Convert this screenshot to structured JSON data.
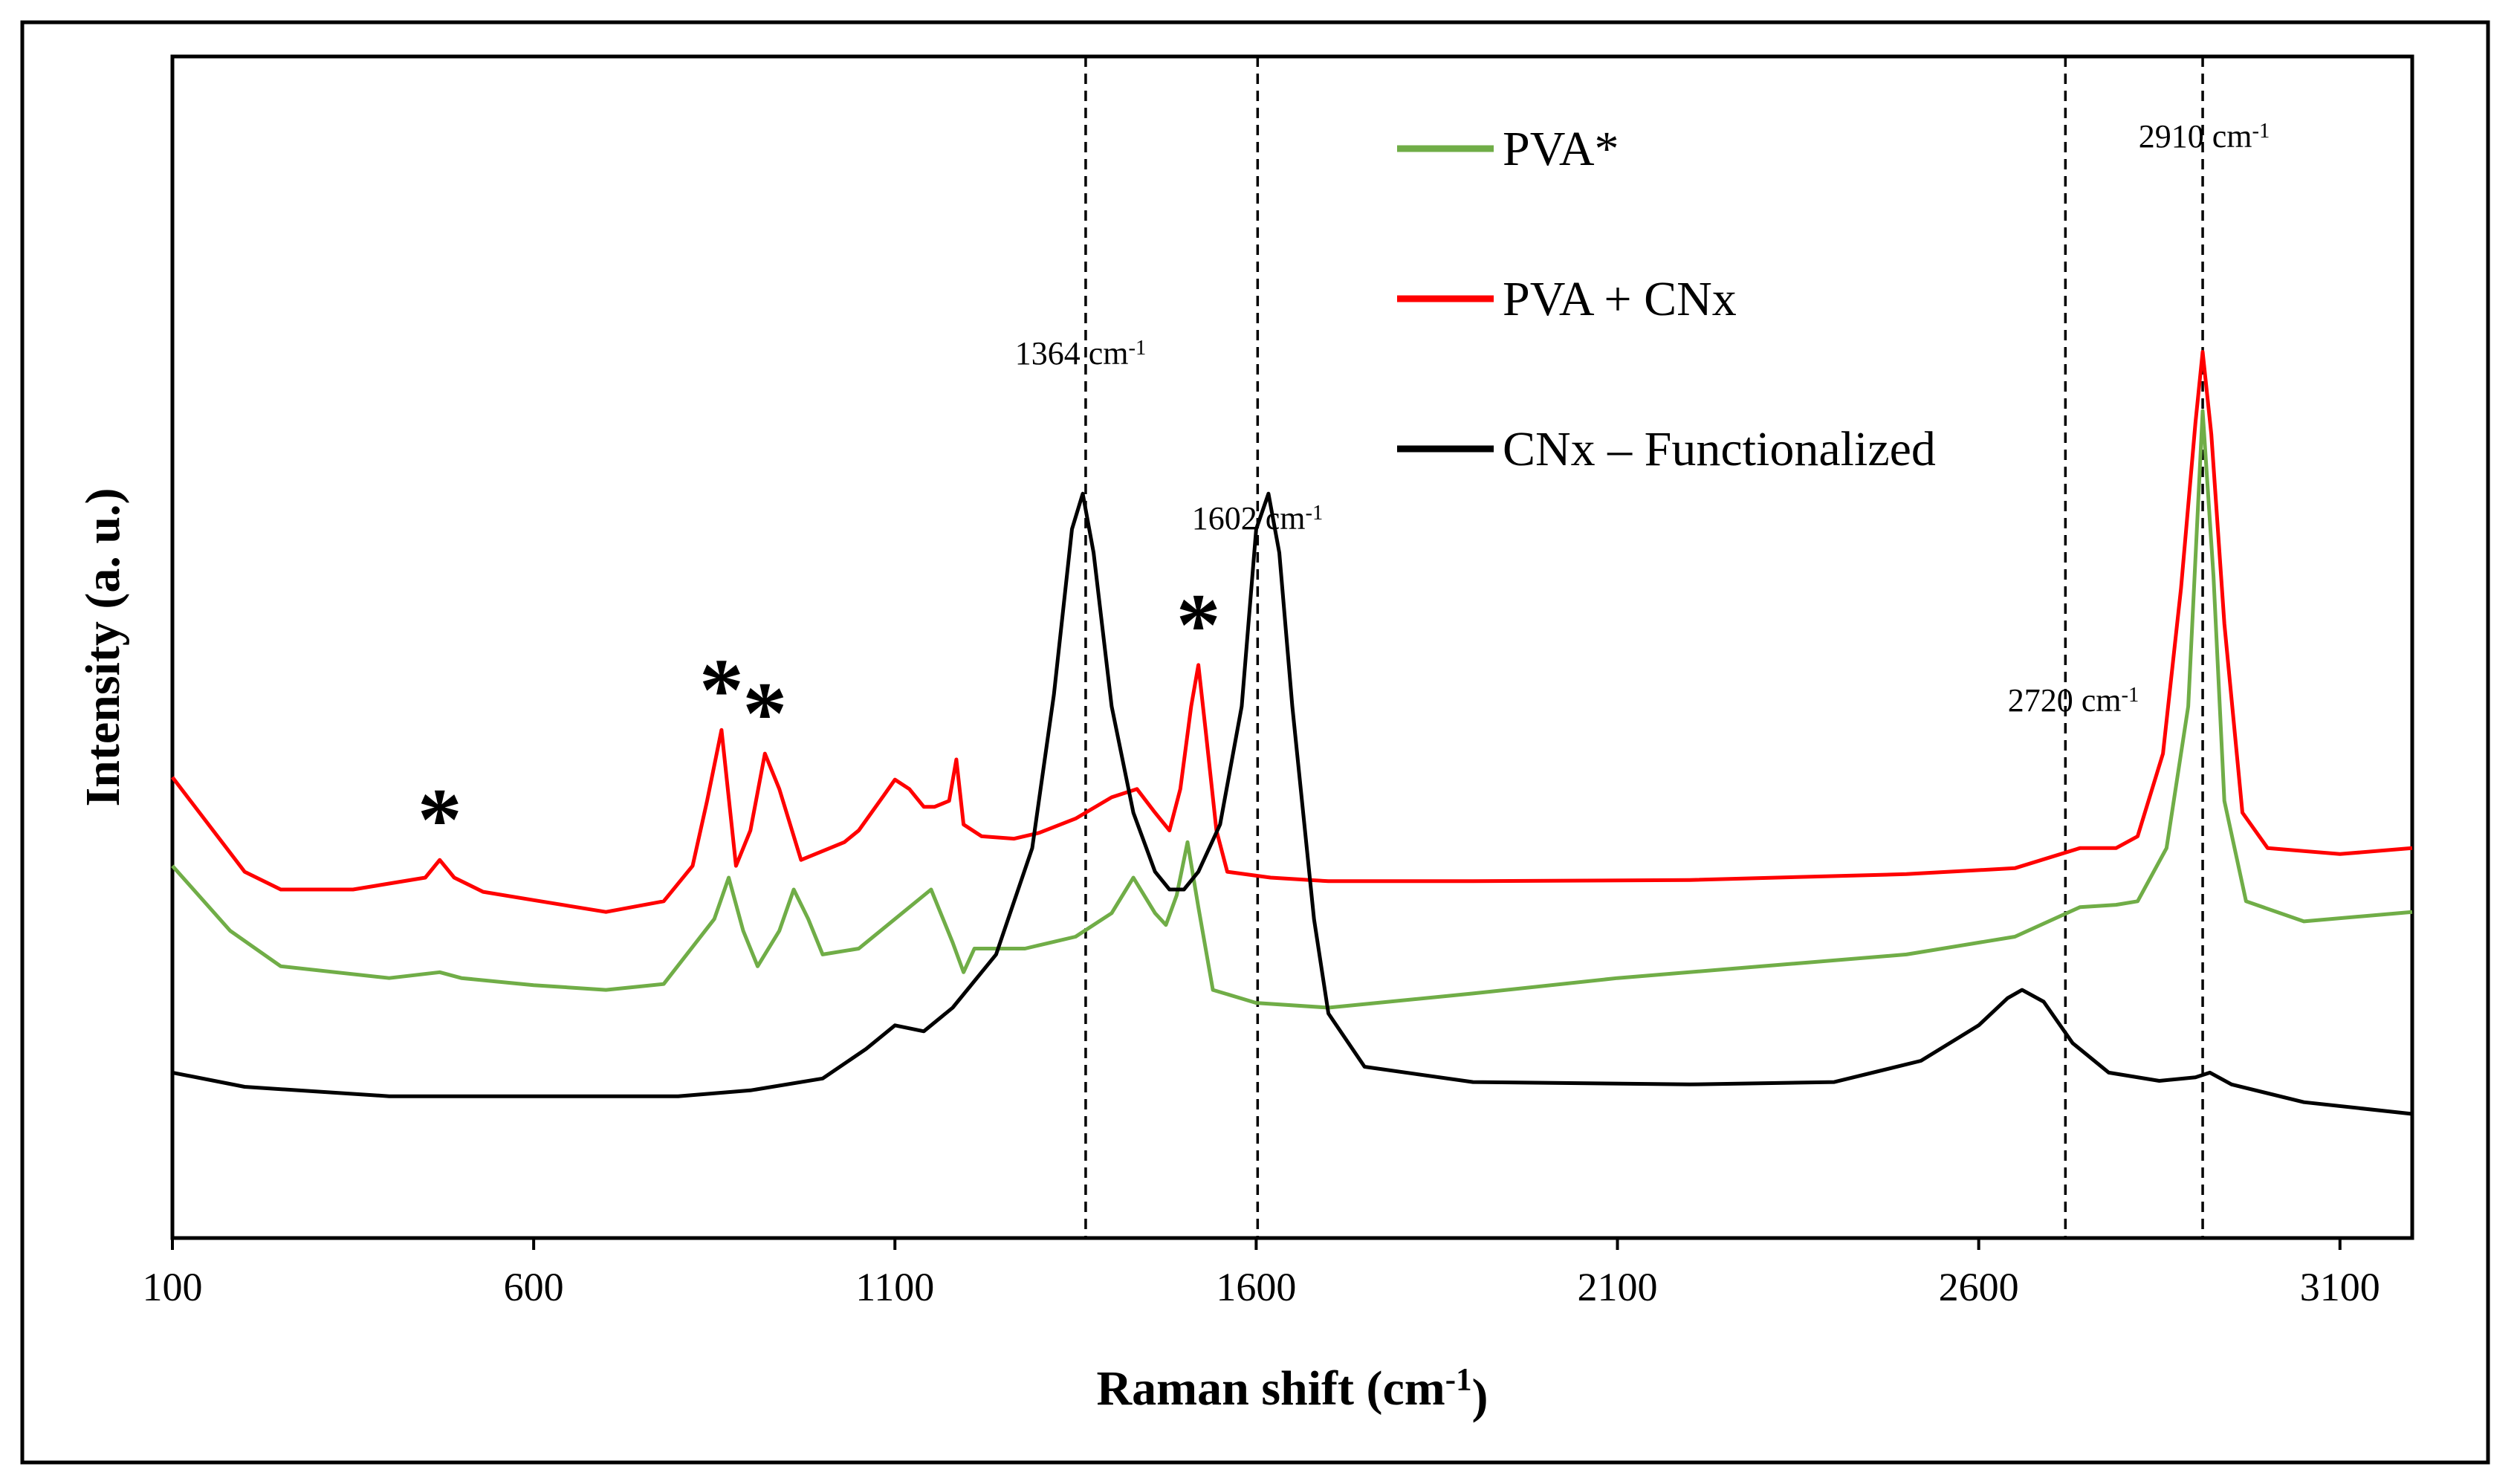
{
  "chart_data": {
    "type": "line",
    "title": "",
    "xlabel": "Raman shift (cm-1)",
    "ylabel": "Intensity (a. u.)",
    "xlim": [
      100,
      3200
    ],
    "ylim": [
      0,
      100
    ],
    "x_ticks": [
      100,
      600,
      1100,
      1600,
      2100,
      2600,
      3100
    ],
    "grid": false,
    "legend_position": "top-right",
    "series": [
      {
        "name": "PVA*",
        "color": "#70ad47",
        "points": [
          [
            100,
            31.5
          ],
          [
            180,
            26
          ],
          [
            250,
            23
          ],
          [
            400,
            22
          ],
          [
            470,
            22.5
          ],
          [
            500,
            22
          ],
          [
            600,
            21.4
          ],
          [
            700,
            21
          ],
          [
            780,
            21.5
          ],
          [
            850,
            27
          ],
          [
            870,
            30.5
          ],
          [
            890,
            26
          ],
          [
            910,
            23
          ],
          [
            940,
            26
          ],
          [
            960,
            29.5
          ],
          [
            980,
            27
          ],
          [
            1000,
            24
          ],
          [
            1050,
            24.5
          ],
          [
            1100,
            27
          ],
          [
            1150,
            29.5
          ],
          [
            1180,
            25
          ],
          [
            1195,
            22.5
          ],
          [
            1210,
            24.5
          ],
          [
            1280,
            24.5
          ],
          [
            1350,
            25.5
          ],
          [
            1400,
            27.5
          ],
          [
            1430,
            30.5
          ],
          [
            1460,
            27.5
          ],
          [
            1475,
            26.5
          ],
          [
            1490,
            29
          ],
          [
            1505,
            33.5
          ],
          [
            1520,
            28
          ],
          [
            1540,
            21
          ],
          [
            1600,
            19.9
          ],
          [
            1700,
            19.5
          ],
          [
            1900,
            20.7
          ],
          [
            2100,
            22
          ],
          [
            2300,
            23
          ],
          [
            2500,
            24
          ],
          [
            2650,
            25.5
          ],
          [
            2740,
            28
          ],
          [
            2790,
            28.2
          ],
          [
            2820,
            28.5
          ],
          [
            2860,
            33
          ],
          [
            2890,
            45
          ],
          [
            2910,
            70
          ],
          [
            2925,
            56
          ],
          [
            2940,
            37
          ],
          [
            2970,
            28.5
          ],
          [
            3050,
            26.8
          ],
          [
            3200,
            27.6
          ]
        ]
      },
      {
        "name": "PVA + CNx",
        "color": "#ff0000",
        "points": [
          [
            100,
            39
          ],
          [
            150,
            35
          ],
          [
            200,
            31
          ],
          [
            250,
            29.5
          ],
          [
            350,
            29.5
          ],
          [
            450,
            30.5
          ],
          [
            470,
            32
          ],
          [
            490,
            30.5
          ],
          [
            530,
            29.3
          ],
          [
            600,
            28.6
          ],
          [
            700,
            27.6
          ],
          [
            780,
            28.5
          ],
          [
            820,
            31.5
          ],
          [
            840,
            37
          ],
          [
            860,
            43
          ],
          [
            880,
            31.5
          ],
          [
            900,
            34.5
          ],
          [
            920,
            41
          ],
          [
            940,
            38
          ],
          [
            970,
            32
          ],
          [
            1030,
            33.5
          ],
          [
            1050,
            34.5
          ],
          [
            1085,
            37.5
          ],
          [
            1100,
            38.8
          ],
          [
            1120,
            38
          ],
          [
            1140,
            36.5
          ],
          [
            1155,
            36.5
          ],
          [
            1175,
            37
          ],
          [
            1185,
            40.5
          ],
          [
            1195,
            35
          ],
          [
            1220,
            34
          ],
          [
            1265,
            33.8
          ],
          [
            1300,
            34.3
          ],
          [
            1350,
            35.5
          ],
          [
            1400,
            37.3
          ],
          [
            1435,
            38
          ],
          [
            1460,
            36
          ],
          [
            1480,
            34.5
          ],
          [
            1495,
            38
          ],
          [
            1510,
            45
          ],
          [
            1520,
            48.5
          ],
          [
            1530,
            43
          ],
          [
            1545,
            34.5
          ],
          [
            1560,
            31
          ],
          [
            1620,
            30.5
          ],
          [
            1700,
            30.2
          ],
          [
            1900,
            30.2
          ],
          [
            2200,
            30.3
          ],
          [
            2500,
            30.8
          ],
          [
            2650,
            31.3
          ],
          [
            2740,
            33
          ],
          [
            2790,
            33
          ],
          [
            2820,
            34
          ],
          [
            2855,
            41
          ],
          [
            2880,
            55
          ],
          [
            2900,
            69
          ],
          [
            2910,
            75
          ],
          [
            2922,
            68
          ],
          [
            2940,
            52
          ],
          [
            2965,
            36
          ],
          [
            3000,
            33
          ],
          [
            3100,
            32.5
          ],
          [
            3200,
            33
          ]
        ]
      },
      {
        "name": "CNx – Functionalized",
        "color": "#000000",
        "points": [
          [
            100,
            14
          ],
          [
            200,
            12.8
          ],
          [
            400,
            12
          ],
          [
            600,
            12
          ],
          [
            800,
            12
          ],
          [
            900,
            12.5
          ],
          [
            1000,
            13.5
          ],
          [
            1060,
            16
          ],
          [
            1100,
            18
          ],
          [
            1140,
            17.5
          ],
          [
            1180,
            19.5
          ],
          [
            1240,
            24
          ],
          [
            1290,
            33
          ],
          [
            1320,
            46
          ],
          [
            1345,
            60
          ],
          [
            1360,
            63
          ],
          [
            1375,
            58
          ],
          [
            1400,
            45
          ],
          [
            1430,
            36
          ],
          [
            1460,
            31
          ],
          [
            1480,
            29.5
          ],
          [
            1500,
            29.5
          ],
          [
            1520,
            31
          ],
          [
            1550,
            35
          ],
          [
            1580,
            45
          ],
          [
            1600,
            60
          ],
          [
            1617,
            63
          ],
          [
            1632,
            58
          ],
          [
            1650,
            45
          ],
          [
            1680,
            27
          ],
          [
            1700,
            19
          ],
          [
            1750,
            14.5
          ],
          [
            1900,
            13.2
          ],
          [
            2200,
            13
          ],
          [
            2400,
            13.2
          ],
          [
            2520,
            15
          ],
          [
            2600,
            18
          ],
          [
            2640,
            20.3
          ],
          [
            2660,
            21
          ],
          [
            2690,
            20
          ],
          [
            2730,
            16.5
          ],
          [
            2780,
            14
          ],
          [
            2850,
            13.3
          ],
          [
            2900,
            13.6
          ],
          [
            2920,
            14
          ],
          [
            2950,
            13
          ],
          [
            3050,
            11.5
          ],
          [
            3200,
            10.5
          ]
        ]
      }
    ],
    "reference_lines": [
      {
        "x": 1364,
        "label": "1364 cm-1"
      },
      {
        "x": 1602,
        "label": "1602 cm-1"
      },
      {
        "x": 2720,
        "label": "2720 cm-1"
      },
      {
        "x": 2910,
        "label": "2910 cm-1"
      }
    ],
    "annotations": [
      {
        "text": "*",
        "x": 470,
        "y": 32
      },
      {
        "text": "*",
        "x": 860,
        "y": 43
      },
      {
        "text": "*",
        "x": 920,
        "y": 41
      },
      {
        "text": "*",
        "x": 1520,
        "y": 48.5
      }
    ]
  }
}
